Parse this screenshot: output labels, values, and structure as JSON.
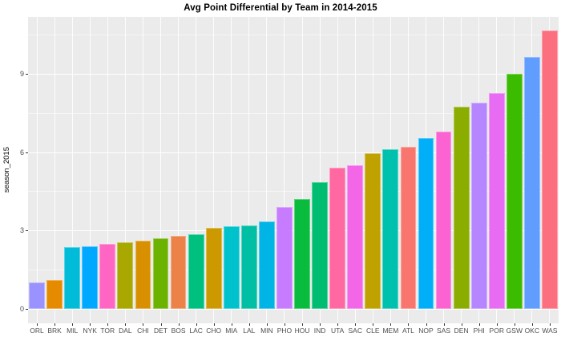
{
  "title": "Avg Point Differential by Team in 2014-2015",
  "chart_data": {
    "type": "bar",
    "title": "Avg Point Differential by Team in 2014-2015",
    "xlabel": "",
    "ylabel": "season_2015",
    "ylim": [
      -0.56,
      11.2
    ],
    "grid": true,
    "legend_position": "none",
    "panel_bg": "#EBEBEB",
    "grid_color": "#FFFFFF",
    "axis_text_color": "#4D4D4D",
    "y_ticks": [
      0,
      3,
      6,
      9
    ],
    "y_minor_ticks": [
      1.5,
      4.5,
      7.5,
      10.5
    ],
    "categories": [
      "ORL",
      "BRK",
      "MIL",
      "NYK",
      "TOR",
      "DAL",
      "CHI",
      "DET",
      "BOS",
      "LAC",
      "CHO",
      "MIA",
      "LAL",
      "MIN",
      "PHO",
      "HOU",
      "IND",
      "UTA",
      "SAC",
      "CLE",
      "MEM",
      "ATL",
      "NOP",
      "SAS",
      "DEN",
      "PHI",
      "POR",
      "GSW",
      "OKC",
      "WAS"
    ],
    "values": [
      1.0,
      1.1,
      2.35,
      2.4,
      2.5,
      2.55,
      2.6,
      2.7,
      2.8,
      2.85,
      3.1,
      3.15,
      3.2,
      3.35,
      3.9,
      4.2,
      4.85,
      5.4,
      5.5,
      5.95,
      6.1,
      6.2,
      6.55,
      6.8,
      7.75,
      7.9,
      8.25,
      9.0,
      9.65,
      10.65
    ],
    "bar_colors": [
      "#9A93FF",
      "#E68A00",
      "#00BCD8",
      "#00A9FF",
      "#FF66C4",
      "#A8A800",
      "#D89000",
      "#6CB200",
      "#ED8248",
      "#00C080",
      "#CC9A00",
      "#00C2CC",
      "#00BFA5",
      "#00B4E6",
      "#C77CFF",
      "#0ABC3E",
      "#00BD72",
      "#FF68A1",
      "#F366E8",
      "#BFA200",
      "#00C0AE",
      "#F8766D",
      "#00AFF8",
      "#FB63D2",
      "#8BAD00",
      "#B586FF",
      "#E76BF3",
      "#3CBC00",
      "#619DFF",
      "#FC6F7F"
    ]
  }
}
